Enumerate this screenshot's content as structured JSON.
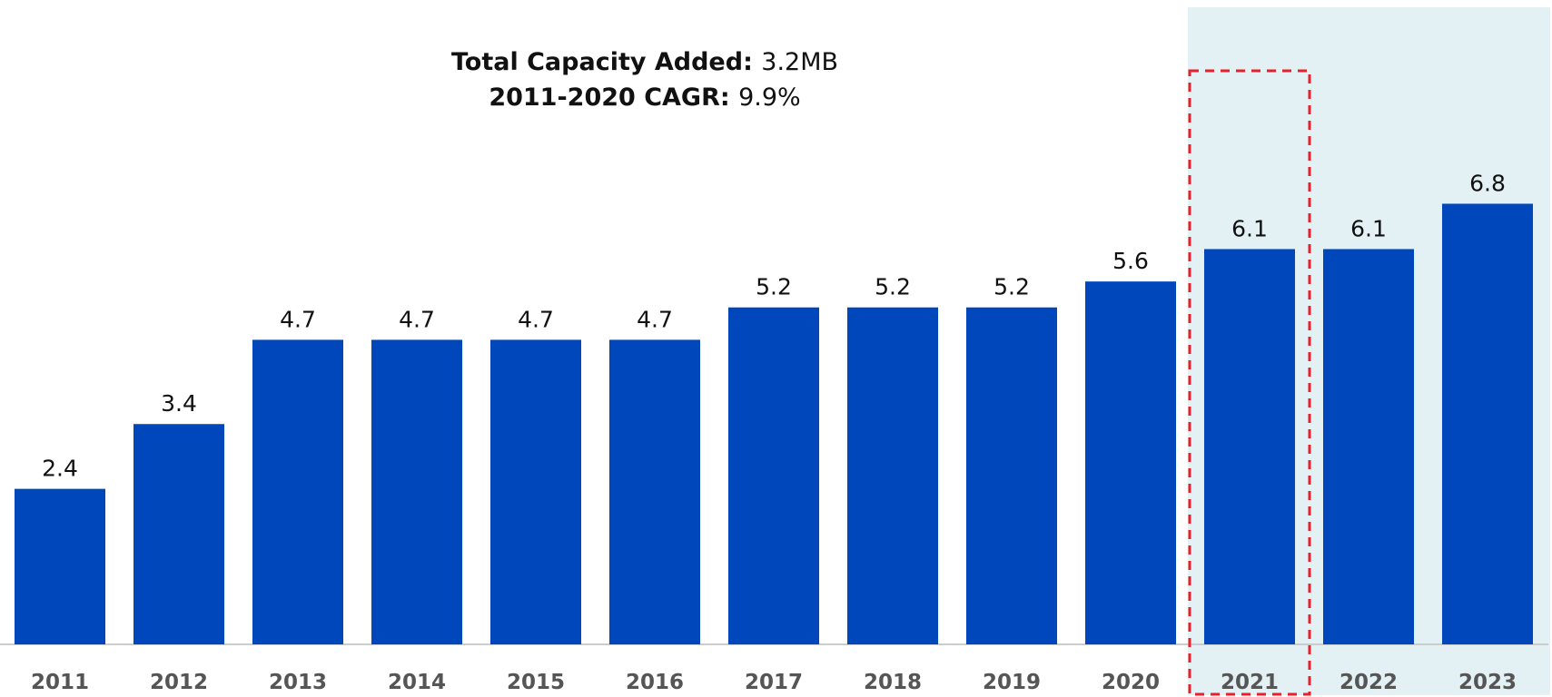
{
  "chart_data": {
    "type": "bar",
    "categories": [
      "2011",
      "2012",
      "2013",
      "2014",
      "2015",
      "2016",
      "2017",
      "2018",
      "2019",
      "2020",
      "2021",
      "2022",
      "2023"
    ],
    "values": [
      2.4,
      3.4,
      4.7,
      4.7,
      4.7,
      4.7,
      5.2,
      5.2,
      5.2,
      5.6,
      6.1,
      6.1,
      6.8
    ],
    "value_labels": [
      "2.4",
      "3.4",
      "4.7",
      "4.7",
      "4.7",
      "4.7",
      "5.2",
      "5.2",
      "5.2",
      "5.6",
      "6.1",
      "6.1",
      "6.8"
    ],
    "title": "",
    "xlabel": "",
    "ylabel": "",
    "ylim": [
      0,
      7.5
    ],
    "grid": false,
    "legend": "none",
    "highlight_shaded_categories": [
      "2021",
      "2022",
      "2023"
    ],
    "highlight_dashed_box_category": "2021",
    "colors": {
      "bar": "#0047BB",
      "shade": "#E3F1F5",
      "dashed_box": "#E8202A",
      "axis": "#cccccc",
      "tick_label": "#555555",
      "value_label": "#111111"
    }
  },
  "annotations": [
    {
      "label": "Total Capacity Added",
      "value": "3.2MB"
    },
    {
      "label": "2011-2020 CAGR",
      "value": "9.9%"
    }
  ]
}
